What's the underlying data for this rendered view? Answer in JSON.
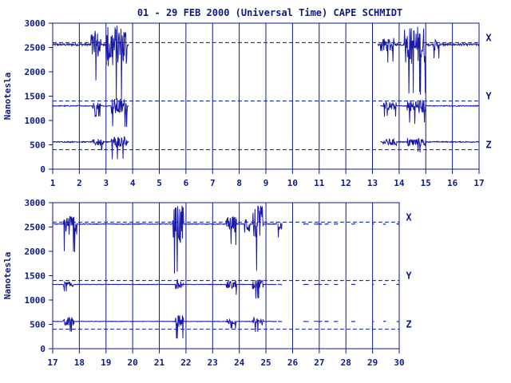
{
  "title": "01 - 29 FEB 2000 (Universal Time) CAPE SCHMIDT",
  "colors": {
    "ink": "#0c1a8c",
    "trace": "#1a1aa8",
    "background": "#ffffff"
  },
  "chart_data": [
    {
      "type": "line",
      "ylabel": "Nanotesla",
      "ylim": [
        0,
        3000
      ],
      "yticks": [
        "0",
        "500",
        "1000",
        "1500",
        "2000",
        "2500",
        "3000"
      ],
      "xlim": [
        1,
        17
      ],
      "xticks": [
        "1",
        "2",
        "3",
        "4",
        "5",
        "6",
        "7",
        "8",
        "9",
        "10",
        "11",
        "12",
        "13",
        "14",
        "15",
        "16",
        "17"
      ],
      "grid": "vertical day lines",
      "reference_levels": [
        2600,
        1400,
        400
      ],
      "component_labels": [
        "X",
        "Y",
        "Z"
      ],
      "series": [
        {
          "name": "X",
          "base": 2560,
          "amp": 130,
          "segments": [
            [
              1.0,
              3.85
            ],
            [
              13.2,
              17.0
            ]
          ],
          "disturbed": [
            [
              2.4,
              2.8,
              500
            ],
            [
              3.0,
              3.8,
              800
            ],
            [
              13.3,
              13.8,
              250
            ],
            [
              14.2,
              15.0,
              700
            ],
            [
              15.3,
              15.5,
              200
            ]
          ]
        },
        {
          "name": "Y",
          "base": 1300,
          "amp": 50,
          "segments": [
            [
              1.0,
              3.85
            ],
            [
              13.3,
              17.0
            ]
          ],
          "disturbed": [
            [
              2.5,
              2.8,
              150
            ],
            [
              3.2,
              3.8,
              300
            ],
            [
              13.4,
              13.9,
              150
            ],
            [
              14.3,
              15.0,
              250
            ]
          ]
        },
        {
          "name": "Z",
          "base": 560,
          "amp": 60,
          "segments": [
            [
              1.0,
              3.85
            ],
            [
              13.3,
              17.0
            ]
          ],
          "disturbed": [
            [
              2.5,
              2.9,
              120
            ],
            [
              3.2,
              3.8,
              250
            ],
            [
              13.4,
              13.9,
              120
            ],
            [
              14.3,
              15.0,
              150
            ]
          ]
        }
      ]
    },
    {
      "type": "line",
      "ylabel": "Nanotesla",
      "ylim": [
        0,
        3000
      ],
      "yticks": [
        "0",
        "500",
        "1000",
        "1500",
        "2000",
        "2500",
        "3000"
      ],
      "xlim": [
        17,
        30
      ],
      "xticks": [
        "17",
        "18",
        "19",
        "20",
        "21",
        "22",
        "23",
        "24",
        "25",
        "26",
        "27",
        "28",
        "29",
        "30"
      ],
      "grid": "vertical day lines",
      "reference_levels": [
        2600,
        1400,
        400
      ],
      "component_labels": [
        "X",
        "Y",
        "Z"
      ],
      "series": [
        {
          "name": "X",
          "base": 2560,
          "amp": 40,
          "segments": [
            [
              17.0,
              25.4
            ],
            [
              25.45,
              25.6
            ],
            [
              26.4,
              26.6
            ],
            [
              26.8,
              27.1
            ],
            [
              27.2,
              27.35
            ],
            [
              27.55,
              27.7
            ],
            [
              28.2,
              28.35
            ],
            [
              29.0,
              29.05
            ],
            [
              29.4,
              29.5
            ],
            [
              29.9,
              30.0
            ]
          ],
          "disturbed": [
            [
              17.4,
              17.9,
              400
            ],
            [
              21.5,
              21.9,
              700
            ],
            [
              23.5,
              23.9,
              300
            ],
            [
              24.2,
              24.4,
              300
            ],
            [
              24.5,
              24.9,
              700
            ],
            [
              25.4,
              25.6,
              200
            ]
          ]
        },
        {
          "name": "Y",
          "base": 1320,
          "amp": 30,
          "segments": [
            [
              17.0,
              25.4
            ],
            [
              25.45,
              25.6
            ],
            [
              26.4,
              26.6
            ],
            [
              26.8,
              27.1
            ],
            [
              27.2,
              27.35
            ],
            [
              27.55,
              27.7
            ],
            [
              28.2,
              28.35
            ],
            [
              29.0,
              29.05
            ],
            [
              29.4,
              29.5
            ],
            [
              29.9,
              30.0
            ]
          ],
          "disturbed": [
            [
              17.4,
              17.8,
              100
            ],
            [
              21.6,
              21.9,
              200
            ],
            [
              23.5,
              23.9,
              150
            ],
            [
              24.5,
              24.9,
              200
            ]
          ]
        },
        {
          "name": "Z",
          "base": 560,
          "amp": 30,
          "segments": [
            [
              17.0,
              25.4
            ],
            [
              25.45,
              25.6
            ],
            [
              26.4,
              26.6
            ],
            [
              26.8,
              27.1
            ],
            [
              27.2,
              27.35
            ],
            [
              27.55,
              27.7
            ],
            [
              28.2,
              28.35
            ],
            [
              29.0,
              29.05
            ],
            [
              29.4,
              29.5
            ],
            [
              29.9,
              30.0
            ]
          ],
          "disturbed": [
            [
              17.4,
              17.8,
              150
            ],
            [
              21.6,
              21.9,
              250
            ],
            [
              23.5,
              23.9,
              100
            ],
            [
              24.5,
              24.9,
              150
            ]
          ]
        }
      ]
    }
  ]
}
